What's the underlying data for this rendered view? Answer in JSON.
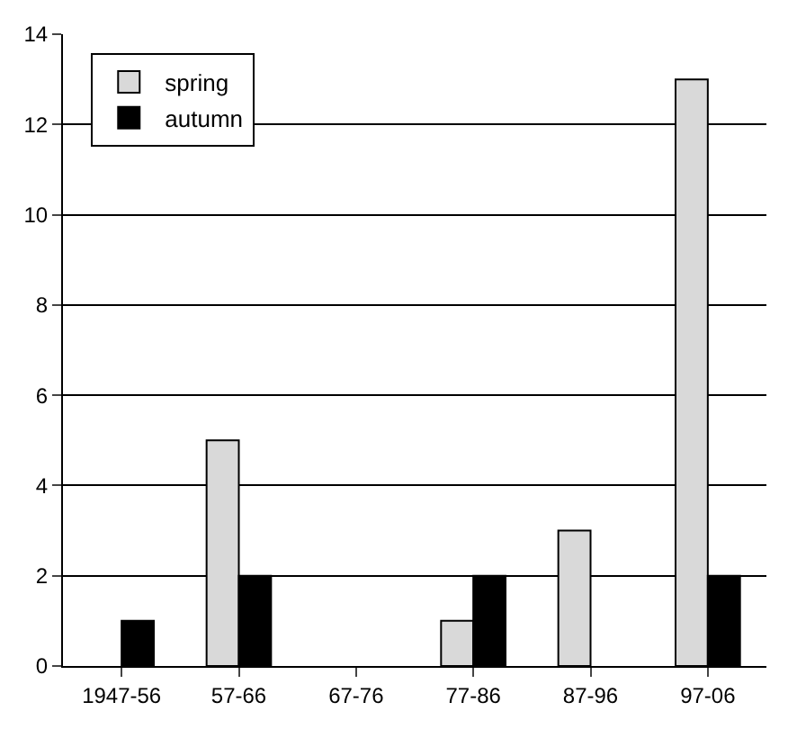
{
  "chart_data": {
    "type": "bar",
    "categories": [
      "1947-56",
      "57-66",
      "67-76",
      "77-86",
      "87-96",
      "97-06"
    ],
    "series": [
      {
        "name": "spring",
        "color": "#d9d9d9",
        "values": [
          null,
          5,
          null,
          1,
          3,
          13
        ]
      },
      {
        "name": "autumn",
        "color": "#000000",
        "values": [
          1,
          2,
          null,
          2,
          null,
          2
        ]
      }
    ],
    "ylim": [
      0,
      14
    ],
    "yticks": [
      0,
      2,
      4,
      6,
      8,
      10,
      12,
      14
    ],
    "grid": "y",
    "legend": "top left"
  }
}
